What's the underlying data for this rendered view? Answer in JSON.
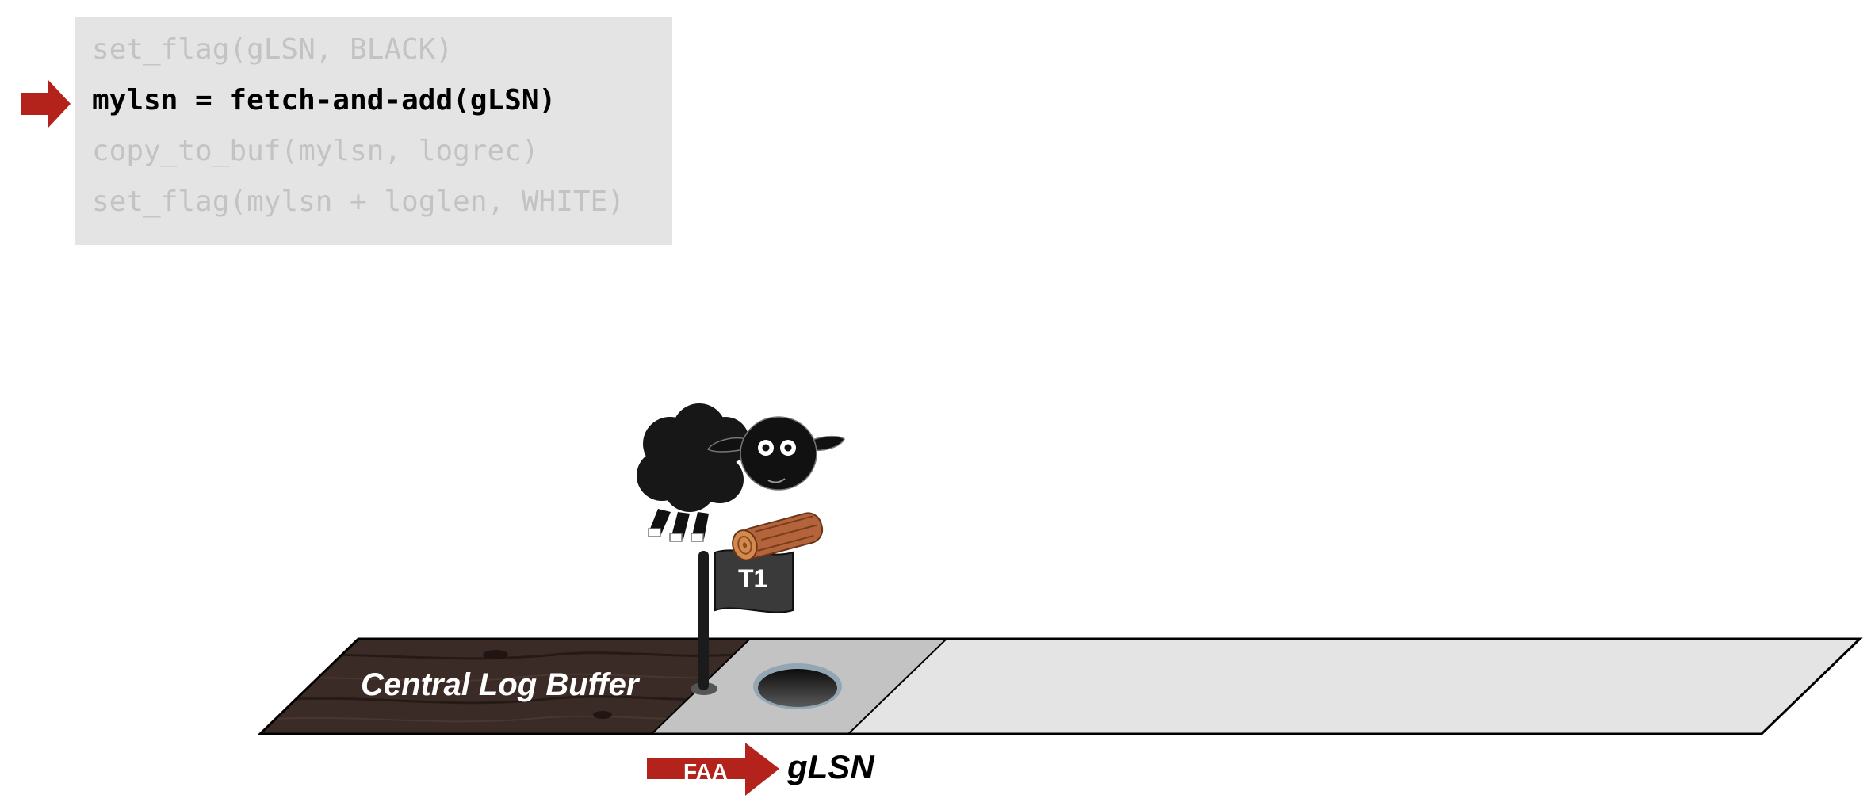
{
  "code": {
    "lines": [
      "set_flag(gLSN, BLACK)",
      "mylsn = fetch-and-add(gLSN)",
      "copy_to_buf(mylsn, logrec)",
      "set_flag(mylsn + loglen, WHITE)"
    ],
    "active_line": 1,
    "cursor_icon": "right-arrow-icon"
  },
  "diagram": {
    "buffer_label": "Central Log Buffer",
    "flag_label": "T1",
    "faa_label": "FAA",
    "pointer_label": "gLSN",
    "icons": [
      "black-sheep-icon",
      "log-icon",
      "flag-icon",
      "hole-icon"
    ]
  },
  "colors": {
    "accent_red": "#b4231b",
    "code_bg": "#e4e4e4",
    "inactive_code": "#c3c3c3",
    "used_buffer": "#3b2b27",
    "current_slot": "#c3c3c3",
    "free_buffer": "#e4e4e4"
  }
}
